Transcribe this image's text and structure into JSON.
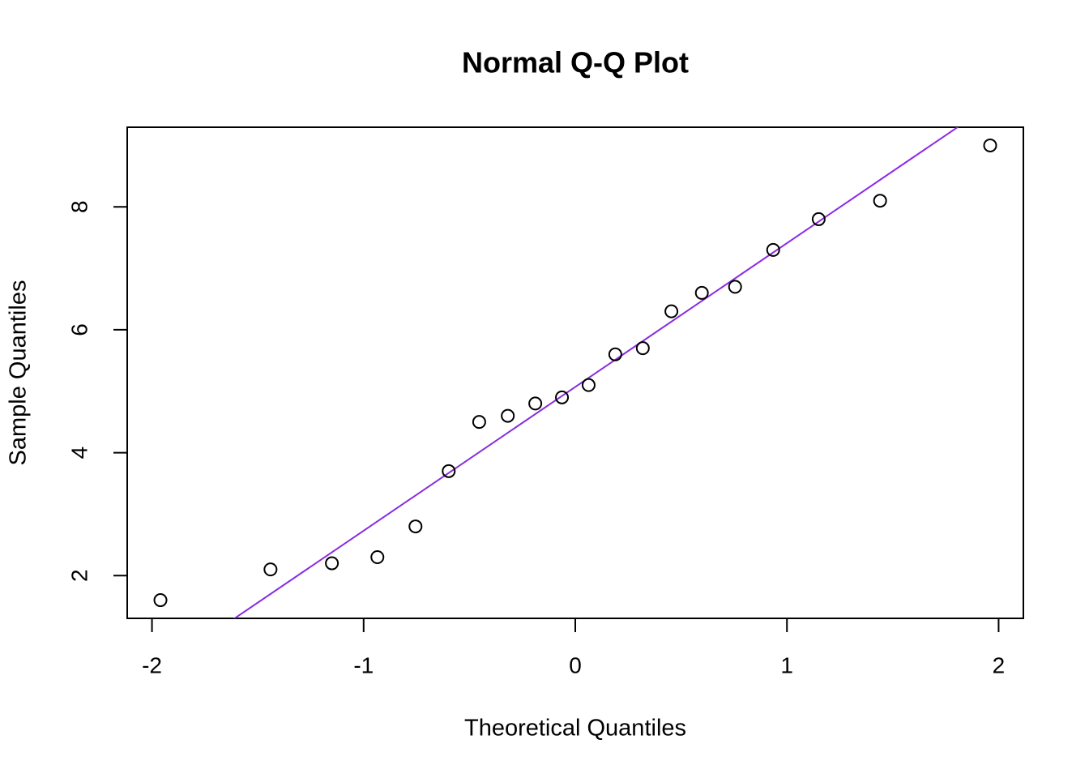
{
  "chart_data": {
    "type": "scatter",
    "title": "Normal Q-Q Plot",
    "x_label": "Theoretical Quantiles",
    "y_label": "Sample Quantiles",
    "x": [
      -1.96,
      -1.44,
      -1.15,
      -0.935,
      -0.755,
      -0.598,
      -0.454,
      -0.319,
      -0.189,
      -0.063,
      0.063,
      0.189,
      0.319,
      0.454,
      0.598,
      0.755,
      0.935,
      1.15,
      1.44,
      1.96
    ],
    "values": [
      1.6,
      2.1,
      2.2,
      2.3,
      2.8,
      3.7,
      4.5,
      4.6,
      4.8,
      4.9,
      5.1,
      5.6,
      5.7,
      6.3,
      6.6,
      6.7,
      7.3,
      7.8,
      8.1,
      9.0
    ],
    "color": "#000000",
    "reference_line": {
      "intercept": 5.07,
      "slope": 2.34,
      "color": "#8a2be2"
    },
    "xlim": [
      -2.117,
      2.117
    ],
    "xticks": [
      -2,
      -1,
      0,
      1,
      2
    ],
    "ylim": [
      1.304,
      9.296
    ],
    "yticks": [
      2,
      4,
      6,
      8
    ],
    "grid": false
  }
}
